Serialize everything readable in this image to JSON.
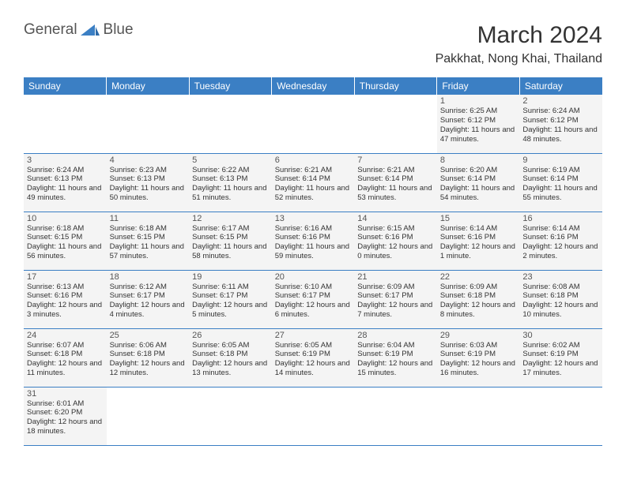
{
  "brand": {
    "name_part1": "General",
    "name_part2": "Blue",
    "logo_color": "#3b7fc4",
    "text_color": "#555555"
  },
  "title": "March 2024",
  "location": "Pakkhat, Nong Khai, Thailand",
  "colors": {
    "header_bg": "#3b7fc4",
    "header_text": "#ffffff",
    "cell_bg": "#f4f4f4",
    "border": "#3b7fc4",
    "text": "#333333"
  },
  "day_headers": [
    "Sunday",
    "Monday",
    "Tuesday",
    "Wednesday",
    "Thursday",
    "Friday",
    "Saturday"
  ],
  "weeks": [
    [
      {
        "empty": true
      },
      {
        "empty": true
      },
      {
        "empty": true
      },
      {
        "empty": true
      },
      {
        "empty": true
      },
      {
        "day": "1",
        "sunrise": "Sunrise: 6:25 AM",
        "sunset": "Sunset: 6:12 PM",
        "daylight": "Daylight: 11 hours and 47 minutes."
      },
      {
        "day": "2",
        "sunrise": "Sunrise: 6:24 AM",
        "sunset": "Sunset: 6:12 PM",
        "daylight": "Daylight: 11 hours and 48 minutes."
      }
    ],
    [
      {
        "day": "3",
        "sunrise": "Sunrise: 6:24 AM",
        "sunset": "Sunset: 6:13 PM",
        "daylight": "Daylight: 11 hours and 49 minutes."
      },
      {
        "day": "4",
        "sunrise": "Sunrise: 6:23 AM",
        "sunset": "Sunset: 6:13 PM",
        "daylight": "Daylight: 11 hours and 50 minutes."
      },
      {
        "day": "5",
        "sunrise": "Sunrise: 6:22 AM",
        "sunset": "Sunset: 6:13 PM",
        "daylight": "Daylight: 11 hours and 51 minutes."
      },
      {
        "day": "6",
        "sunrise": "Sunrise: 6:21 AM",
        "sunset": "Sunset: 6:14 PM",
        "daylight": "Daylight: 11 hours and 52 minutes."
      },
      {
        "day": "7",
        "sunrise": "Sunrise: 6:21 AM",
        "sunset": "Sunset: 6:14 PM",
        "daylight": "Daylight: 11 hours and 53 minutes."
      },
      {
        "day": "8",
        "sunrise": "Sunrise: 6:20 AM",
        "sunset": "Sunset: 6:14 PM",
        "daylight": "Daylight: 11 hours and 54 minutes."
      },
      {
        "day": "9",
        "sunrise": "Sunrise: 6:19 AM",
        "sunset": "Sunset: 6:14 PM",
        "daylight": "Daylight: 11 hours and 55 minutes."
      }
    ],
    [
      {
        "day": "10",
        "sunrise": "Sunrise: 6:18 AM",
        "sunset": "Sunset: 6:15 PM",
        "daylight": "Daylight: 11 hours and 56 minutes."
      },
      {
        "day": "11",
        "sunrise": "Sunrise: 6:18 AM",
        "sunset": "Sunset: 6:15 PM",
        "daylight": "Daylight: 11 hours and 57 minutes."
      },
      {
        "day": "12",
        "sunrise": "Sunrise: 6:17 AM",
        "sunset": "Sunset: 6:15 PM",
        "daylight": "Daylight: 11 hours and 58 minutes."
      },
      {
        "day": "13",
        "sunrise": "Sunrise: 6:16 AM",
        "sunset": "Sunset: 6:16 PM",
        "daylight": "Daylight: 11 hours and 59 minutes."
      },
      {
        "day": "14",
        "sunrise": "Sunrise: 6:15 AM",
        "sunset": "Sunset: 6:16 PM",
        "daylight": "Daylight: 12 hours and 0 minutes."
      },
      {
        "day": "15",
        "sunrise": "Sunrise: 6:14 AM",
        "sunset": "Sunset: 6:16 PM",
        "daylight": "Daylight: 12 hours and 1 minute."
      },
      {
        "day": "16",
        "sunrise": "Sunrise: 6:14 AM",
        "sunset": "Sunset: 6:16 PM",
        "daylight": "Daylight: 12 hours and 2 minutes."
      }
    ],
    [
      {
        "day": "17",
        "sunrise": "Sunrise: 6:13 AM",
        "sunset": "Sunset: 6:16 PM",
        "daylight": "Daylight: 12 hours and 3 minutes."
      },
      {
        "day": "18",
        "sunrise": "Sunrise: 6:12 AM",
        "sunset": "Sunset: 6:17 PM",
        "daylight": "Daylight: 12 hours and 4 minutes."
      },
      {
        "day": "19",
        "sunrise": "Sunrise: 6:11 AM",
        "sunset": "Sunset: 6:17 PM",
        "daylight": "Daylight: 12 hours and 5 minutes."
      },
      {
        "day": "20",
        "sunrise": "Sunrise: 6:10 AM",
        "sunset": "Sunset: 6:17 PM",
        "daylight": "Daylight: 12 hours and 6 minutes."
      },
      {
        "day": "21",
        "sunrise": "Sunrise: 6:09 AM",
        "sunset": "Sunset: 6:17 PM",
        "daylight": "Daylight: 12 hours and 7 minutes."
      },
      {
        "day": "22",
        "sunrise": "Sunrise: 6:09 AM",
        "sunset": "Sunset: 6:18 PM",
        "daylight": "Daylight: 12 hours and 8 minutes."
      },
      {
        "day": "23",
        "sunrise": "Sunrise: 6:08 AM",
        "sunset": "Sunset: 6:18 PM",
        "daylight": "Daylight: 12 hours and 10 minutes."
      }
    ],
    [
      {
        "day": "24",
        "sunrise": "Sunrise: 6:07 AM",
        "sunset": "Sunset: 6:18 PM",
        "daylight": "Daylight: 12 hours and 11 minutes."
      },
      {
        "day": "25",
        "sunrise": "Sunrise: 6:06 AM",
        "sunset": "Sunset: 6:18 PM",
        "daylight": "Daylight: 12 hours and 12 minutes."
      },
      {
        "day": "26",
        "sunrise": "Sunrise: 6:05 AM",
        "sunset": "Sunset: 6:18 PM",
        "daylight": "Daylight: 12 hours and 13 minutes."
      },
      {
        "day": "27",
        "sunrise": "Sunrise: 6:05 AM",
        "sunset": "Sunset: 6:19 PM",
        "daylight": "Daylight: 12 hours and 14 minutes."
      },
      {
        "day": "28",
        "sunrise": "Sunrise: 6:04 AM",
        "sunset": "Sunset: 6:19 PM",
        "daylight": "Daylight: 12 hours and 15 minutes."
      },
      {
        "day": "29",
        "sunrise": "Sunrise: 6:03 AM",
        "sunset": "Sunset: 6:19 PM",
        "daylight": "Daylight: 12 hours and 16 minutes."
      },
      {
        "day": "30",
        "sunrise": "Sunrise: 6:02 AM",
        "sunset": "Sunset: 6:19 PM",
        "daylight": "Daylight: 12 hours and 17 minutes."
      }
    ],
    [
      {
        "day": "31",
        "sunrise": "Sunrise: 6:01 AM",
        "sunset": "Sunset: 6:20 PM",
        "daylight": "Daylight: 12 hours and 18 minutes."
      },
      {
        "empty": true
      },
      {
        "empty": true
      },
      {
        "empty": true
      },
      {
        "empty": true
      },
      {
        "empty": true
      },
      {
        "empty": true
      }
    ]
  ]
}
